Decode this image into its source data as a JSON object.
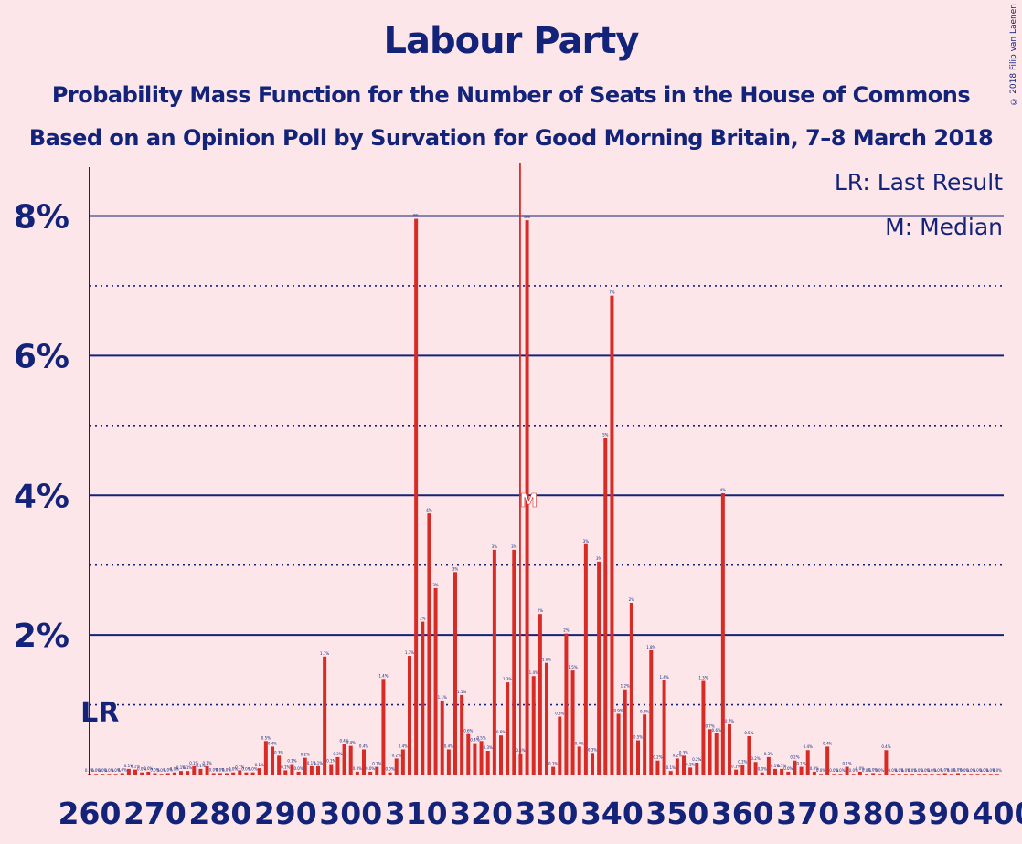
{
  "title": "Labour Party",
  "subtitle1": "Probability Mass Function for the Number of Seats in the House of Commons",
  "subtitle2": "Based on an Opinion Poll by Survation for Good Morning Britain, 7–8 March 2018",
  "copyright": "© 2018 Filip van Laenen",
  "legend": {
    "lr": "LR: Last Result",
    "median": "M: Median"
  },
  "colors": {
    "bar": "#D92B26",
    "axis": "#13237A",
    "background": "#FDE6E9"
  },
  "chart_data": {
    "type": "bar",
    "x_start": 260,
    "x_end": 400,
    "x_ticks": [
      260,
      270,
      280,
      290,
      300,
      310,
      320,
      330,
      340,
      350,
      360,
      370,
      380,
      390,
      400
    ],
    "y_ticks": [
      0,
      0.01,
      0.02,
      0.03,
      0.04,
      0.05,
      0.06,
      0.07,
      0.08
    ],
    "y_tick_labels": {
      "0.02": "2%",
      "0.04": "4%",
      "0.06": "6%",
      "0.08": "8%"
    },
    "ylim": [
      0,
      0.087
    ],
    "last_result": 262,
    "last_result_label": "LR",
    "median": 326,
    "median_marker": "M",
    "values": [
      0.0001,
      0.0001,
      0.0001,
      0.0001,
      0.0001,
      0.0002,
      0.0008,
      0.0007,
      0.0003,
      0.0004,
      0.0002,
      0.0001,
      0.0002,
      0.0003,
      0.0005,
      0.0005,
      0.0012,
      0.0008,
      0.0012,
      0.0002,
      0.0002,
      0.0002,
      0.0003,
      0.0006,
      0.0003,
      0.0003,
      0.0009,
      0.0048,
      0.004,
      0.0027,
      0.0006,
      0.0015,
      0.0004,
      0.0024,
      0.0012,
      0.0012,
      0.0169,
      0.0015,
      0.0025,
      0.0044,
      0.0041,
      0.0004,
      0.0036,
      0.0004,
      0.0011,
      0.0137,
      0.0003,
      0.0023,
      0.0036,
      0.017,
      0.0796,
      0.0219,
      0.0374,
      0.0267,
      0.0106,
      0.0036,
      0.029,
      0.0114,
      0.0058,
      0.0045,
      0.0048,
      0.0034,
      0.0322,
      0.0056,
      0.0132,
      0.0322,
      0.003,
      0.0794,
      0.0141,
      0.023,
      0.016,
      0.0011,
      0.0083,
      0.0202,
      0.0149,
      0.004,
      0.033,
      0.0031,
      0.0305,
      0.0482,
      0.0686,
      0.0087,
      0.0122,
      0.0246,
      0.0049,
      0.0086,
      0.0178,
      0.002,
      0.0135,
      0.0005,
      0.0023,
      0.0027,
      0.001,
      0.0017,
      0.0134,
      0.0065,
      0.0059,
      0.0403,
      0.0072,
      0.0007,
      0.0014,
      0.0055,
      0.0018,
      0.0003,
      0.0025,
      0.0008,
      0.0008,
      0.0004,
      0.002,
      0.0011,
      0.0035,
      0.0004,
      0.0001,
      0.004,
      0.0001,
      0.0001,
      0.0011,
      0.0001,
      0.0004,
      0.0001,
      0.0002,
      0.0001,
      0.0035,
      0.0001,
      0.0001,
      0.0001,
      0.0001,
      0.0001,
      0.0001,
      0.0001,
      0.0001,
      0.0002,
      0.0001,
      0.0002,
      0.0001,
      0.0001,
      0.0001,
      0.0001,
      0.0001,
      0.0001
    ]
  }
}
